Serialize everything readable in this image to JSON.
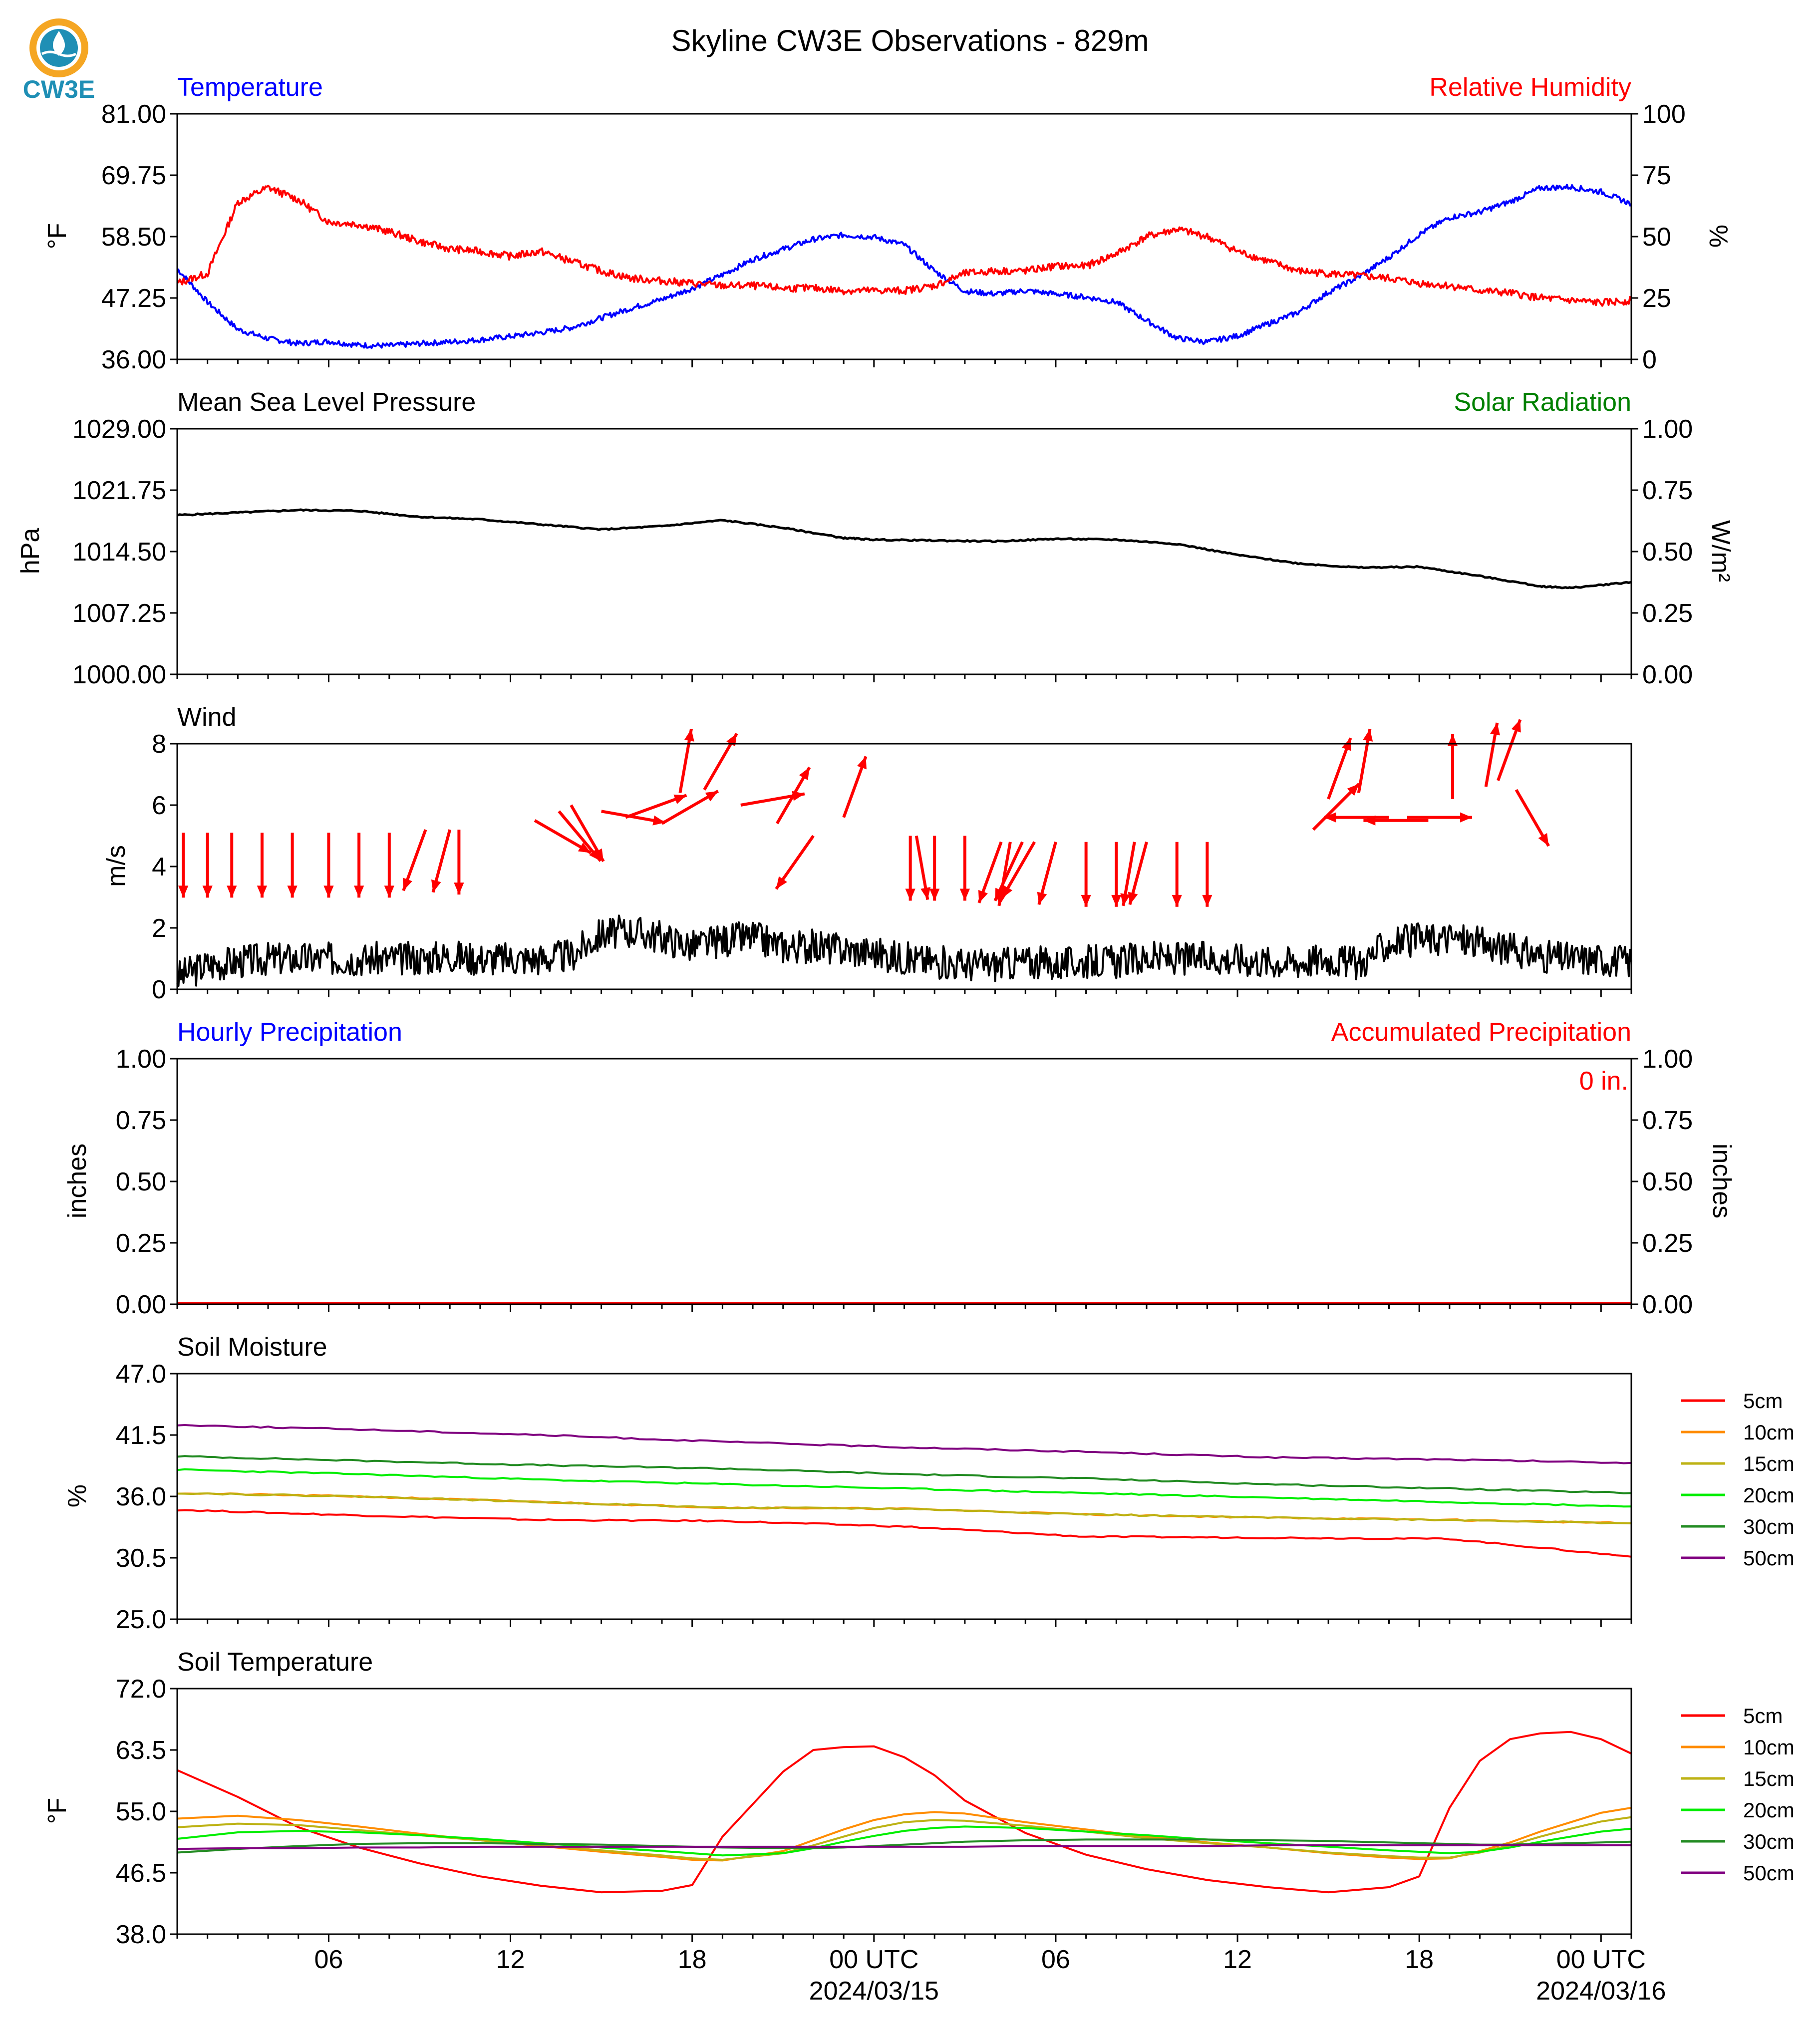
{
  "logo": {
    "text": "CW3E"
  },
  "figure_title": "Skyline CW3E Observations - 829m",
  "time_axis": {
    "ticks": [
      {
        "hour": 6,
        "label": "06",
        "sub": ""
      },
      {
        "hour": 12,
        "label": "12",
        "sub": ""
      },
      {
        "hour": 18,
        "label": "18",
        "sub": ""
      },
      {
        "hour": 24,
        "label": "00 UTC",
        "sub": "2024/03/15"
      },
      {
        "hour": 30,
        "label": "06",
        "sub": ""
      },
      {
        "hour": 36,
        "label": "12",
        "sub": ""
      },
      {
        "hour": 42,
        "label": "18",
        "sub": ""
      },
      {
        "hour": 48,
        "label": "00 UTC",
        "sub": "2024/03/16"
      }
    ],
    "range_hours": [
      1,
      49
    ]
  },
  "panels": {
    "temp_rh": {
      "left_title": "Temperature",
      "right_title": "Relative Humidity",
      "left_unit": "°F",
      "right_unit": "%",
      "left_ticks": [
        "81.00",
        "69.75",
        "58.50",
        "47.25",
        "36.00"
      ],
      "right_ticks": [
        "100",
        "75",
        "50",
        "25",
        "0"
      ],
      "title_left_color": "#0000ff",
      "title_right_color": "#ff0000"
    },
    "pressure": {
      "left_title": "Mean Sea Level Pressure",
      "right_title": "Solar Radiation",
      "left_unit": "hPa",
      "right_unit": "W/m²",
      "left_ticks": [
        "1029.00",
        "1021.75",
        "1014.50",
        "1007.25",
        "1000.00"
      ],
      "right_ticks": [
        "1.00",
        "0.75",
        "0.50",
        "0.25",
        "0.00"
      ],
      "title_right_color": "#008000"
    },
    "wind": {
      "left_title": "Wind",
      "left_unit": "m/s",
      "left_ticks": [
        "8",
        "6",
        "4",
        "2",
        "0"
      ]
    },
    "precip": {
      "left_title": "Hourly Precipitation",
      "right_title": "Accumulated Precipitation",
      "left_unit": "inches",
      "right_unit": "inches",
      "left_ticks": [
        "1.00",
        "0.75",
        "0.50",
        "0.25",
        "0.00"
      ],
      "right_ticks": [
        "1.00",
        "0.75",
        "0.50",
        "0.25",
        "0.00"
      ],
      "annotation": "0 in.",
      "title_left_color": "#0000ff",
      "title_right_color": "#ff0000"
    },
    "soil_moisture": {
      "left_title": "Soil Moisture",
      "left_unit": "%",
      "left_ticks": [
        "47.0",
        "41.5",
        "36.0",
        "30.5",
        "25.0"
      ]
    },
    "soil_temp": {
      "left_title": "Soil Temperature",
      "left_unit": "°F",
      "left_ticks": [
        "72.0",
        "63.5",
        "55.0",
        "46.5",
        "38.0"
      ]
    }
  },
  "legend": [
    {
      "label": "5cm",
      "color": "#ff0000"
    },
    {
      "label": "10cm",
      "color": "#ff8c00"
    },
    {
      "label": "15cm",
      "color": "#bdb214"
    },
    {
      "label": "20cm",
      "color": "#00ee00"
    },
    {
      "label": "30cm",
      "color": "#228b22"
    },
    {
      "label": "50cm",
      "color": "#800080"
    }
  ],
  "chart_data": [
    {
      "type": "line",
      "name": "temperature_rh",
      "x_hours": [
        1,
        2,
        3,
        4,
        5,
        6,
        7,
        8,
        9,
        10,
        11,
        12,
        13,
        14,
        15,
        16,
        17,
        18,
        19,
        20,
        21,
        22,
        23,
        24,
        25,
        26,
        27,
        28,
        29,
        30,
        31,
        32,
        33,
        34,
        35,
        36,
        37,
        38,
        39,
        40,
        41,
        42,
        43,
        44,
        45,
        46,
        47,
        48,
        49
      ],
      "series": [
        {
          "name": "Temperature",
          "axis": "left",
          "color": "#0000ff",
          "values": [
            52.6,
            46.5,
            41.5,
            39.8,
            38.9,
            39.3,
            38.6,
            38.5,
            38.9,
            39.2,
            39.6,
            40.2,
            40.9,
            41.8,
            43.6,
            45.4,
            47.0,
            49.0,
            51.5,
            54.3,
            56.2,
            58.0,
            58.8,
            58.4,
            57.0,
            52.2,
            48.5,
            48.0,
            48.6,
            48.0,
            47.4,
            46.5,
            43.1,
            39.9,
            39.2,
            40.3,
            42.5,
            44.6,
            48.3,
            51.1,
            54.7,
            58.9,
            62.0,
            63.0,
            64.9,
            67.4,
            67.6,
            66.7,
            64.5
          ]
        },
        {
          "name": "Relative Humidity",
          "axis": "right",
          "color": "#ff0000",
          "values": [
            31,
            35,
            64,
            70,
            65,
            56,
            55,
            52,
            48,
            45,
            44,
            42,
            44,
            40,
            36,
            33,
            32,
            31,
            30,
            30,
            29,
            29,
            28,
            28,
            28,
            30,
            35,
            36,
            36,
            38,
            38,
            43,
            50,
            53,
            50,
            44,
            40,
            36,
            35,
            34,
            33,
            31,
            30,
            28,
            27,
            25,
            24,
            23,
            24
          ]
        }
      ],
      "ylim_left": [
        36,
        81
      ],
      "ylim_right": [
        0,
        100
      ]
    },
    {
      "type": "line",
      "name": "mslp",
      "x_hours": [
        1,
        3,
        5,
        7,
        9,
        11,
        13,
        15,
        17,
        19,
        21,
        23,
        24,
        26,
        28,
        30,
        32,
        34,
        36,
        38,
        40,
        42,
        44,
        46,
        47,
        49
      ],
      "series": [
        {
          "name": "Mean Sea Level Pressure",
          "color": "#000000",
          "values": [
            1018.8,
            1019.1,
            1019.4,
            1019.3,
            1018.6,
            1018.3,
            1017.7,
            1017.1,
            1017.5,
            1018.2,
            1017.3,
            1016.1,
            1015.9,
            1015.8,
            1015.7,
            1016.0,
            1015.9,
            1015.4,
            1014.1,
            1013.1,
            1012.6,
            1012.7,
            1011.6,
            1010.4,
            1010.2,
            1010.9
          ]
        }
      ],
      "ylim": [
        1000,
        1029
      ]
    },
    {
      "type": "line",
      "name": "wind",
      "x_hours": [
        1,
        2,
        3,
        4,
        5,
        6,
        7,
        8,
        9,
        10,
        11,
        12,
        13,
        14,
        15,
        16,
        17,
        18,
        19,
        20,
        21,
        22,
        23,
        24,
        25,
        26,
        27,
        28,
        29,
        30,
        31,
        32,
        33,
        34,
        35,
        36,
        37,
        38,
        39,
        40,
        41,
        42,
        43,
        44,
        45,
        46,
        47,
        48,
        49
      ],
      "series": [
        {
          "name": "Wind speed",
          "color": "#000000",
          "values": [
            0.4,
            0.8,
            0.9,
            1.0,
            1.0,
            1.0,
            1.0,
            1.0,
            1.0,
            1.1,
            1.0,
            1.0,
            1.0,
            1.1,
            1.8,
            1.9,
            1.7,
            1.4,
            1.6,
            1.7,
            1.4,
            1.4,
            1.3,
            1.2,
            1.0,
            0.9,
            0.8,
            0.8,
            0.9,
            0.8,
            0.9,
            0.9,
            1.0,
            1.0,
            1.0,
            1.0,
            0.9,
            0.9,
            1.0,
            0.8,
            1.5,
            1.6,
            1.7,
            1.5,
            1.3,
            1.1,
            1.0,
            1.0,
            0.9
          ]
        }
      ],
      "arrows_hours_speed_dir": [
        [
          1.2,
          5.1,
          0
        ],
        [
          2.0,
          5.1,
          0
        ],
        [
          2.8,
          5.1,
          0
        ],
        [
          3.8,
          5.1,
          0
        ],
        [
          4.8,
          5.1,
          0
        ],
        [
          6.0,
          5.1,
          0
        ],
        [
          7.0,
          5.1,
          0
        ],
        [
          8.0,
          5.1,
          0
        ],
        [
          9.2,
          5.2,
          20
        ],
        [
          10.0,
          5.2,
          15
        ],
        [
          10.3,
          5.2,
          0
        ],
        [
          12.8,
          5.5,
          300
        ],
        [
          13.6,
          5.8,
          320
        ],
        [
          14.0,
          6.0,
          330
        ],
        [
          15.0,
          5.8,
          280
        ],
        [
          15.8,
          5.6,
          250
        ],
        [
          17.0,
          5.4,
          240
        ],
        [
          17.6,
          6.4,
          190
        ],
        [
          18.4,
          6.5,
          210
        ],
        [
          19.6,
          6.0,
          260
        ],
        [
          20.8,
          5.4,
          210
        ],
        [
          22.0,
          5.0,
          35
        ],
        [
          23.0,
          5.6,
          200
        ],
        [
          25.2,
          5.0,
          0
        ],
        [
          25.4,
          5.0,
          350
        ],
        [
          26.0,
          5.0,
          0
        ],
        [
          27.0,
          5.0,
          0
        ],
        [
          28.2,
          4.8,
          20
        ],
        [
          28.5,
          4.8,
          10
        ],
        [
          28.9,
          4.8,
          25
        ],
        [
          29.3,
          4.8,
          30
        ],
        [
          30.0,
          4.8,
          15
        ],
        [
          31.0,
          4.8,
          0
        ],
        [
          32.0,
          4.8,
          0
        ],
        [
          32.6,
          4.8,
          10
        ],
        [
          33.0,
          4.8,
          15
        ],
        [
          34.0,
          4.8,
          0
        ],
        [
          35.0,
          4.8,
          0
        ],
        [
          38.5,
          5.2,
          225
        ],
        [
          39.0,
          6.2,
          200
        ],
        [
          40.0,
          6.4,
          190
        ],
        [
          41.0,
          5.6,
          90
        ],
        [
          41.6,
          5.6,
          270
        ],
        [
          42.3,
          5.5,
          90
        ],
        [
          43.1,
          6.2,
          180
        ],
        [
          44.2,
          6.6,
          190
        ],
        [
          44.6,
          6.8,
          200
        ],
        [
          45.2,
          6.5,
          330
        ]
      ],
      "ylim": [
        0,
        8
      ]
    },
    {
      "type": "line",
      "name": "precipitation",
      "series": [
        {
          "name": "Hourly Precipitation",
          "color": "#0000ff",
          "values": [
            0
          ]
        },
        {
          "name": "Accumulated Precipitation",
          "color": "#ff0000",
          "values": [
            0
          ]
        }
      ],
      "ylim": [
        0,
        1
      ]
    },
    {
      "type": "line",
      "name": "soil_moisture",
      "x_hours": [
        1,
        7,
        13,
        19,
        25,
        31,
        37,
        43,
        49
      ],
      "series": [
        {
          "name": "5cm",
          "color": "#ff0000",
          "values": [
            34.8,
            34.3,
            33.9,
            33.8,
            33.3,
            32.4,
            32.3,
            32.2,
            30.6
          ]
        },
        {
          "name": "10cm",
          "color": "#ff8c00",
          "values": [
            36.3,
            36.0,
            35.5,
            35.0,
            34.9,
            34.4,
            34.1,
            33.9,
            33.6
          ]
        },
        {
          "name": "15cm",
          "color": "#bdb214",
          "values": [
            36.3,
            36.0,
            35.5,
            35.0,
            34.9,
            34.4,
            34.1,
            33.9,
            33.6
          ]
        },
        {
          "name": "20cm",
          "color": "#00ee00",
          "values": [
            38.4,
            38.0,
            37.5,
            37.1,
            36.7,
            36.3,
            35.9,
            35.5,
            35.1
          ]
        },
        {
          "name": "30cm",
          "color": "#228b22",
          "values": [
            39.6,
            39.2,
            38.8,
            38.5,
            38.0,
            37.6,
            37.1,
            36.7,
            36.3
          ]
        },
        {
          "name": "50cm",
          "color": "#800080",
          "values": [
            42.4,
            42.0,
            41.5,
            40.9,
            40.4,
            40.0,
            39.5,
            39.3,
            39.0
          ]
        }
      ],
      "ylim": [
        25,
        47
      ]
    },
    {
      "type": "line",
      "name": "soil_temperature",
      "x_hours": [
        1,
        3,
        5,
        7,
        9,
        11,
        13,
        15,
        17,
        18,
        19,
        21,
        22,
        23,
        24,
        25,
        26,
        27,
        29,
        31,
        33,
        35,
        37,
        39,
        41,
        42,
        43,
        44,
        45,
        46,
        47,
        48,
        49
      ],
      "series": [
        {
          "name": "5cm",
          "color": "#ff0000",
          "values": [
            60.7,
            57.0,
            52.8,
            50.0,
            47.8,
            46.0,
            44.7,
            43.8,
            44.0,
            44.8,
            51.5,
            60.5,
            63.5,
            63.9,
            64.0,
            62.5,
            60.0,
            56.5,
            52.0,
            49.0,
            47.0,
            45.5,
            44.5,
            43.8,
            44.5,
            46.0,
            55.5,
            62.0,
            65.0,
            65.8,
            66.0,
            65.0,
            63.0
          ]
        },
        {
          "name": "10cm",
          "color": "#ff8c00",
          "values": [
            54.0,
            54.4,
            53.8,
            52.9,
            51.9,
            51.0,
            50.2,
            49.4,
            48.7,
            48.3,
            48.2,
            49.5,
            51.0,
            52.5,
            53.8,
            54.6,
            54.9,
            54.7,
            53.5,
            52.5,
            51.5,
            50.7,
            50.0,
            49.2,
            48.6,
            48.4,
            48.5,
            49.5,
            50.7,
            52.2,
            53.5,
            54.8,
            55.5
          ]
        },
        {
          "name": "15cm",
          "color": "#bdb214",
          "values": [
            52.8,
            53.3,
            53.1,
            52.4,
            51.7,
            51.0,
            50.3,
            49.6,
            48.9,
            48.5,
            48.3,
            49.2,
            50.3,
            51.5,
            52.7,
            53.5,
            53.8,
            53.7,
            53.0,
            52.2,
            51.3,
            50.6,
            50.0,
            49.3,
            48.8,
            48.6,
            48.6,
            49.3,
            50.3,
            51.5,
            52.6,
            53.6,
            54.2
          ]
        },
        {
          "name": "20cm",
          "color": "#00ee00",
          "values": [
            51.2,
            52.1,
            52.3,
            52.1,
            51.7,
            51.2,
            50.6,
            50.0,
            49.5,
            49.2,
            48.9,
            49.2,
            49.9,
            50.8,
            51.6,
            52.3,
            52.7,
            52.9,
            52.7,
            52.2,
            51.7,
            51.1,
            50.6,
            50.1,
            49.6,
            49.4,
            49.2,
            49.4,
            50.0,
            50.8,
            51.5,
            52.2,
            52.6
          ]
        },
        {
          "name": "30cm",
          "color": "#228b22",
          "values": [
            49.3,
            49.8,
            50.2,
            50.5,
            50.6,
            50.6,
            50.5,
            50.4,
            50.2,
            50.1,
            50.0,
            49.9,
            49.9,
            50.0,
            50.2,
            50.4,
            50.6,
            50.8,
            51.0,
            51.1,
            51.1,
            51.1,
            51.0,
            50.9,
            50.7,
            50.6,
            50.5,
            50.4,
            50.4,
            50.5,
            50.6,
            50.7,
            50.8
          ]
        },
        {
          "name": "50cm",
          "color": "#800080",
          "values": [
            49.8,
            49.9,
            49.9,
            50.0,
            50.0,
            50.1,
            50.1,
            50.1,
            50.1,
            50.1,
            50.1,
            50.1,
            50.1,
            50.1,
            50.1,
            50.1,
            50.1,
            50.1,
            50.2,
            50.2,
            50.2,
            50.2,
            50.3,
            50.3,
            50.3,
            50.3,
            50.3,
            50.3,
            50.3,
            50.3,
            50.3,
            50.3,
            50.3
          ]
        }
      ],
      "ylim": [
        38,
        72
      ]
    }
  ]
}
